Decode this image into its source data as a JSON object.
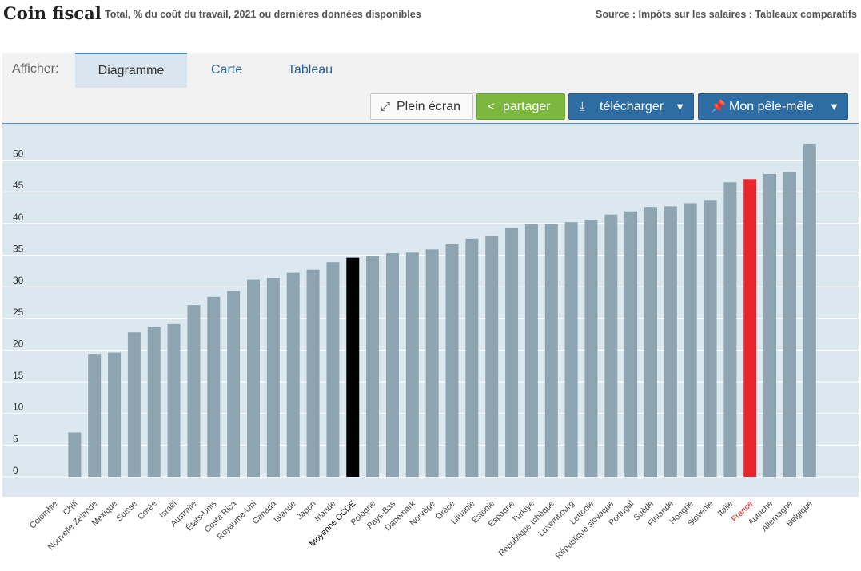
{
  "header": {
    "title": "Coin fiscal",
    "subtitle": "Total, % du coût du travail, 2021 ou dernières données disponibles",
    "source": "Source : Impôts sur les salaires : Tableaux comparatifs"
  },
  "toolbar": {
    "show_label": "Afficher:",
    "tabs": [
      {
        "label": "Diagramme",
        "active": true
      },
      {
        "label": "Carte",
        "active": false
      },
      {
        "label": "Tableau",
        "active": false
      }
    ],
    "buttons": {
      "fullscreen": "Plein écran",
      "share": "partager",
      "download": "télécharger",
      "mypage": "Mon pêle-mêle"
    }
  },
  "colors": {
    "bar": "#8fa4b1",
    "oecd": "#000000",
    "highlight": "#e8262b",
    "plot_bg": "#dbe8f0"
  },
  "chart_data": {
    "type": "bar",
    "ylim": [
      0,
      55
    ],
    "yticks": [
      0,
      5,
      10,
      15,
      20,
      25,
      30,
      35,
      40,
      45,
      50
    ],
    "grid": true,
    "categories": [
      "Colombie",
      "Chili",
      "Nouvelle-Zélande",
      "Mexique",
      "Suisse",
      "Corée",
      "Israël",
      "Australie",
      "États-Unis",
      "Costa Rica",
      "Royaume-Uni",
      "Canada",
      "Islande",
      "Japon",
      "Irlande",
      "Moyenne OCDE",
      "Pologne",
      "Pays-Bas",
      "Danemark",
      "Norvège",
      "Grèce",
      "Lituanie",
      "Estonie",
      "Espagne",
      "Türkiye",
      "République tchèque",
      "Luxembourg",
      "Lettonie",
      "République slovaque",
      "Portugal",
      "Suède",
      "Finlande",
      "Hongrie",
      "Slovénie",
      "Italie",
      "France",
      "Autriche",
      "Allemagne",
      "Belgique"
    ],
    "values": [
      0,
      7.0,
      19.4,
      19.6,
      22.8,
      23.6,
      24.1,
      27.1,
      28.4,
      29.3,
      31.2,
      31.4,
      32.2,
      32.7,
      33.9,
      34.6,
      34.8,
      35.3,
      35.4,
      35.9,
      36.7,
      37.6,
      38.0,
      39.3,
      39.9,
      39.9,
      40.2,
      40.6,
      41.4,
      41.9,
      42.6,
      42.7,
      43.2,
      43.6,
      46.5,
      47.0,
      47.8,
      48.1,
      52.6
    ],
    "highlight": {
      "Moyenne OCDE": "oecd",
      "France": "highlight"
    }
  }
}
